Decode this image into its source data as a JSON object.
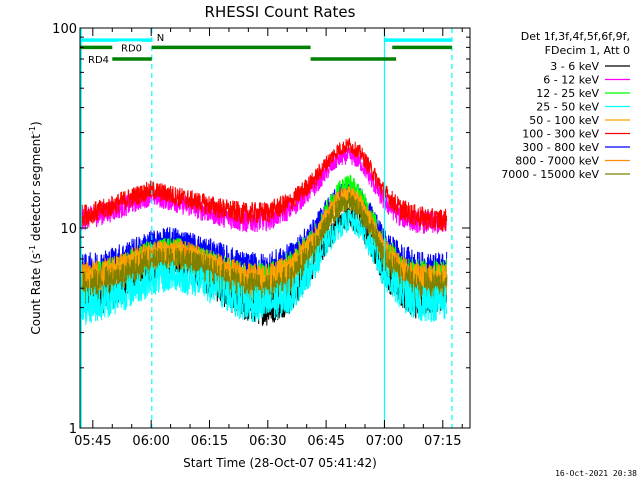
{
  "chart_data": {
    "type": "line",
    "title": "RHESSI Count Rates",
    "xlabel": "Start Time (28-Oct-07 05:41:42)",
    "ylabel_main": "Count Rate (s",
    "ylabel_sup": "-1",
    "ylabel_rest": " detector segment",
    "ylabel_sup2": "-1",
    "ylabel_end": ")",
    "y_scale": "log",
    "ylim": [
      1,
      100
    ],
    "y_ticks": [
      {
        "value": 1,
        "label": "1"
      },
      {
        "value": 10,
        "label": "10"
      },
      {
        "value": 100,
        "label": "100"
      }
    ],
    "xlim": [
      "05:41:42",
      "07:22:00"
    ],
    "x_ticks": [
      "05:45",
      "06:00",
      "06:15",
      "06:30",
      "06:45",
      "07:00",
      "07:15"
    ],
    "legend_header": [
      "Det 1f,3f,4f,5f,6f,9f,",
      "FDecim 1, Att 0"
    ],
    "legend_placement": "right",
    "series": [
      {
        "name": "3 - 6 keV",
        "color": "#000000",
        "x": [
          "05:42",
          "05:48",
          "05:54",
          "06:00",
          "06:06",
          "06:12",
          "06:18",
          "06:24",
          "06:30",
          "06:36",
          "06:42",
          "06:45",
          "06:48",
          "06:51",
          "06:54",
          "06:57",
          "07:00",
          "07:04",
          "07:08",
          "07:12",
          "07:16"
        ],
        "y": [
          4.3,
          4.6,
          5.2,
          6.3,
          7.0,
          6.0,
          5.0,
          4.2,
          4.0,
          4.6,
          6.8,
          8.5,
          10.5,
          11.5,
          10.2,
          8.0,
          6.0,
          5.0,
          4.3,
          4.5,
          4.8
        ]
      },
      {
        "name": "6 - 12 keV",
        "color": "#ff00ff",
        "x": [
          "05:42",
          "05:48",
          "05:54",
          "06:00",
          "06:06",
          "06:12",
          "06:18",
          "06:24",
          "06:30",
          "06:36",
          "06:42",
          "06:45",
          "06:48",
          "06:51",
          "06:54",
          "06:57",
          "07:00",
          "07:04",
          "07:08",
          "07:12",
          "07:16"
        ],
        "y": [
          11.0,
          11.8,
          13.0,
          14.5,
          13.5,
          12.5,
          11.5,
          10.8,
          11.0,
          12.5,
          16.0,
          19.0,
          22.0,
          23.0,
          21.0,
          17.0,
          13.5,
          11.5,
          10.8,
          10.6,
          10.5
        ]
      },
      {
        "name": "12 - 25 keV",
        "color": "#00ff00",
        "x": [
          "05:42",
          "05:48",
          "05:54",
          "06:00",
          "06:06",
          "06:12",
          "06:18",
          "06:24",
          "06:30",
          "06:36",
          "06:42",
          "06:45",
          "06:48",
          "06:51",
          "06:54",
          "06:57",
          "07:00",
          "07:04",
          "07:08",
          "07:12",
          "07:16"
        ],
        "y": [
          5.5,
          5.8,
          6.5,
          7.5,
          7.8,
          7.0,
          6.2,
          5.6,
          5.6,
          6.5,
          9.0,
          12.0,
          15.5,
          17.0,
          14.5,
          11.0,
          8.0,
          6.5,
          5.8,
          5.8,
          5.9
        ]
      },
      {
        "name": "25 - 50 keV",
        "color": "#00ffff",
        "x": [
          "05:42",
          "05:48",
          "05:54",
          "06:00",
          "06:06",
          "06:12",
          "06:18",
          "06:24",
          "06:30",
          "06:36",
          "06:42",
          "06:45",
          "06:48",
          "06:51",
          "06:54",
          "06:57",
          "07:00",
          "07:04",
          "07:08",
          "07:12",
          "07:16"
        ],
        "y": [
          4.0,
          4.3,
          4.8,
          5.5,
          5.8,
          5.4,
          4.8,
          4.2,
          4.1,
          4.6,
          6.5,
          8.3,
          10.0,
          11.0,
          9.8,
          7.8,
          5.8,
          4.8,
          4.2,
          4.2,
          4.3
        ]
      },
      {
        "name": "50 - 100 keV",
        "color": "#ffa500",
        "x": [
          "05:42",
          "05:48",
          "05:54",
          "06:00",
          "06:06",
          "06:12",
          "06:18",
          "06:24",
          "06:30",
          "06:36",
          "06:42",
          "06:45",
          "06:48",
          "06:51",
          "06:54",
          "06:57",
          "07:00",
          "07:04",
          "07:08",
          "07:12",
          "07:16"
        ],
        "y": [
          5.4,
          5.7,
          6.4,
          7.2,
          7.4,
          6.8,
          6.0,
          5.4,
          5.4,
          6.2,
          8.5,
          11.0,
          13.5,
          14.5,
          12.8,
          10.0,
          7.4,
          6.1,
          5.5,
          5.4,
          5.5
        ]
      },
      {
        "name": "100 - 300 keV",
        "color": "#ff0000",
        "x": [
          "05:42",
          "05:48",
          "05:54",
          "06:00",
          "06:06",
          "06:12",
          "06:18",
          "06:24",
          "06:30",
          "06:36",
          "06:42",
          "06:45",
          "06:48",
          "06:51",
          "06:54",
          "06:57",
          "07:00",
          "07:04",
          "07:08",
          "07:12",
          "07:16"
        ],
        "y": [
          11.5,
          12.4,
          14.0,
          15.5,
          14.5,
          13.5,
          12.5,
          11.8,
          12.0,
          13.5,
          17.5,
          21.0,
          24.5,
          26.0,
          23.5,
          19.0,
          15.0,
          12.5,
          11.5,
          11.0,
          11.0
        ]
      },
      {
        "name": "300 - 800 keV",
        "color": "#0000ff",
        "x": [
          "05:42",
          "05:48",
          "05:54",
          "06:00",
          "06:06",
          "06:12",
          "06:18",
          "06:24",
          "06:30",
          "06:36",
          "06:42",
          "06:45",
          "06:48",
          "06:51",
          "06:54",
          "06:57",
          "07:00",
          "07:04",
          "07:08",
          "07:12",
          "07:16"
        ],
        "y": [
          6.2,
          6.6,
          7.4,
          8.4,
          8.8,
          8.0,
          7.2,
          6.4,
          6.3,
          7.2,
          9.8,
          12.5,
          14.8,
          15.5,
          14.0,
          11.2,
          8.5,
          7.2,
          6.5,
          6.3,
          6.4
        ]
      },
      {
        "name": "800 - 7000 keV",
        "color": "#ff8c00",
        "x": [
          "05:42",
          "05:48",
          "05:54",
          "06:00",
          "06:06",
          "06:12",
          "06:18",
          "06:24",
          "06:30",
          "06:36",
          "06:42",
          "06:45",
          "06:48",
          "06:51",
          "06:54",
          "06:57",
          "07:00",
          "07:04",
          "07:08",
          "07:12",
          "07:16"
        ],
        "y": [
          5.6,
          5.9,
          6.6,
          7.4,
          7.6,
          7.0,
          6.2,
          5.6,
          5.5,
          6.3,
          8.6,
          11.2,
          13.8,
          14.8,
          13.0,
          10.2,
          7.6,
          6.2,
          5.6,
          5.5,
          5.6
        ]
      },
      {
        "name": "7000 - 15000 keV",
        "color": "#808000",
        "x": [
          "05:42",
          "05:48",
          "05:54",
          "06:00",
          "06:06",
          "06:12",
          "06:18",
          "06:24",
          "06:30",
          "06:36",
          "06:42",
          "06:45",
          "06:48",
          "06:51",
          "06:54",
          "06:57",
          "07:00",
          "07:04",
          "07:08",
          "07:12",
          "07:16"
        ],
        "y": [
          5.0,
          5.3,
          5.9,
          6.7,
          7.0,
          6.4,
          5.6,
          5.0,
          4.9,
          5.6,
          7.8,
          10.2,
          12.5,
          13.5,
          12.0,
          9.4,
          7.0,
          5.7,
          5.1,
          5.0,
          5.1
        ]
      }
    ],
    "vertical_markers": [
      {
        "time": "05:42:00",
        "style": "solid",
        "color": "#00ffff"
      },
      {
        "time": "06:00:10",
        "style": "dashed",
        "color": "#00ffff"
      },
      {
        "time": "07:00:00",
        "style": "solid",
        "color": "#00ffff"
      },
      {
        "time": "07:17:20",
        "style": "dashed",
        "color": "#00ffff"
      }
    ],
    "flag_bars": [
      {
        "label": "N",
        "color": "#00ffff",
        "value": 87,
        "segments": [
          [
            "05:41:42",
            "06:00:10"
          ],
          [
            "07:00:00",
            "07:17:20"
          ]
        ]
      },
      {
        "label": "RD0",
        "color": "#008000",
        "value": 80,
        "segments": [
          [
            "05:41:42",
            "05:50:00"
          ],
          [
            "06:00:10",
            "06:41:00"
          ],
          [
            "07:02:00",
            "07:17:20"
          ]
        ]
      },
      {
        "label": "RD4",
        "color": "#008000",
        "value": 70,
        "segments": [
          [
            "05:50:00",
            "06:00:10"
          ],
          [
            "06:41:00",
            "07:03:00"
          ]
        ]
      }
    ],
    "grid": false,
    "timestamp": "16-Oct-2021 20:38"
  }
}
